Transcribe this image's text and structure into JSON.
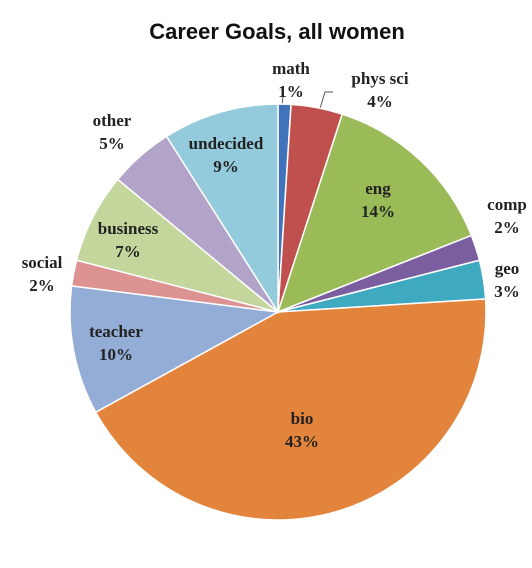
{
  "chart_data": {
    "type": "pie",
    "title": "Career Goals, all women",
    "categories": [
      "math",
      "phys sci",
      "eng",
      "comp",
      "geo",
      "bio",
      "teacher",
      "social",
      "business",
      "other",
      "undecided"
    ],
    "values": [
      1,
      4,
      14,
      2,
      3,
      43,
      10,
      2,
      7,
      5,
      9
    ],
    "value_labels": [
      "1%",
      "4%",
      "14%",
      "2%",
      "3%",
      "43%",
      "10%",
      "2%",
      "7%",
      "5%",
      "9%"
    ],
    "colors": [
      "#3f74bd",
      "#c0504d",
      "#9bbb59",
      "#7b5ea0",
      "#3fa9c0",
      "#e3843d",
      "#93add6",
      "#dc9391",
      "#c3d69b",
      "#b2a3c9",
      "#93cbdc"
    ]
  }
}
